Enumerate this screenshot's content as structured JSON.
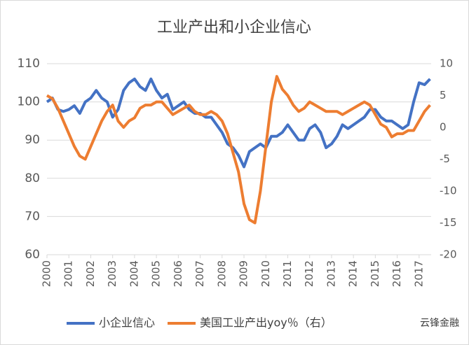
{
  "chart_data": {
    "type": "line",
    "title": "工业产出和小企业信心",
    "watermark": "云锋金融",
    "x": [
      2000,
      2000.25,
      2000.5,
      2000.75,
      2001,
      2001.25,
      2001.5,
      2001.75,
      2002,
      2002.25,
      2002.5,
      2002.75,
      2003,
      2003.25,
      2003.5,
      2003.75,
      2004,
      2004.25,
      2004.5,
      2004.75,
      2005,
      2005.25,
      2005.5,
      2005.75,
      2006,
      2006.25,
      2006.5,
      2006.75,
      2007,
      2007.25,
      2007.5,
      2007.75,
      2008,
      2008.25,
      2008.5,
      2008.75,
      2009,
      2009.25,
      2009.5,
      2009.75,
      2010,
      2010.25,
      2010.5,
      2010.75,
      2011,
      2011.25,
      2011.5,
      2011.75,
      2012,
      2012.25,
      2012.5,
      2012.75,
      2013,
      2013.25,
      2013.5,
      2013.75,
      2014,
      2014.25,
      2014.5,
      2014.75,
      2015,
      2015.25,
      2015.5,
      2015.75,
      2016,
      2016.25,
      2016.5,
      2016.75,
      2017,
      2017.25,
      2017.5
    ],
    "series": [
      {
        "name": "小企业信心",
        "color": "#4472c4",
        "axis": "y",
        "values": [
          100,
          101,
          98,
          97.5,
          98,
          99,
          97,
          100,
          101,
          103,
          101,
          100,
          96,
          98,
          103,
          105,
          106,
          104,
          103,
          106,
          103,
          101,
          102,
          98,
          99,
          100,
          98,
          97,
          97,
          96,
          96,
          94,
          92,
          89,
          88,
          86,
          83,
          87,
          88,
          89,
          88,
          91,
          91,
          92,
          94,
          92,
          90,
          90,
          93,
          94,
          92,
          88,
          89,
          91,
          94,
          93,
          94,
          95,
          96,
          98,
          98,
          96,
          95,
          95,
          94,
          93,
          94,
          100,
          105,
          104.5,
          106
        ]
      },
      {
        "name": "美国工业产出yoy％（右）",
        "color": "#ed7d31",
        "axis": "y2",
        "values": [
          5,
          4.5,
          3,
          1,
          -1,
          -3,
          -4.5,
          -5,
          -3,
          -1,
          1,
          2.5,
          3.5,
          1,
          0,
          1,
          1.5,
          3,
          3.5,
          3.5,
          4,
          4,
          3,
          2,
          2.5,
          3,
          3.5,
          2.5,
          2,
          2,
          2.5,
          2,
          1,
          -1,
          -4,
          -7,
          -12,
          -14.5,
          -15,
          -10,
          -3,
          4,
          8,
          6,
          5,
          3.5,
          2.5,
          3,
          4,
          3.5,
          3,
          2.5,
          2.5,
          2.5,
          2,
          2.5,
          3,
          3.5,
          4,
          3.5,
          2,
          0.5,
          0,
          -1.5,
          -1,
          -1,
          -0.5,
          -0.5,
          1,
          2.5,
          3.5
        ]
      }
    ],
    "xlim": [
      2000,
      2017.55
    ],
    "xticks": [
      2000,
      2001,
      2002,
      2003,
      2004,
      2005,
      2006,
      2007,
      2008,
      2009,
      2010,
      2011,
      2012,
      2013,
      2014,
      2015,
      2016,
      2017
    ],
    "ylim": [
      60,
      110
    ],
    "yticks": [
      60,
      70,
      80,
      90,
      100,
      110
    ],
    "y2lim": [
      -20,
      10
    ],
    "y2ticks": [
      -20,
      -15,
      -10,
      -5,
      0,
      5,
      10
    ],
    "grid": true,
    "legend": "bottom"
  }
}
